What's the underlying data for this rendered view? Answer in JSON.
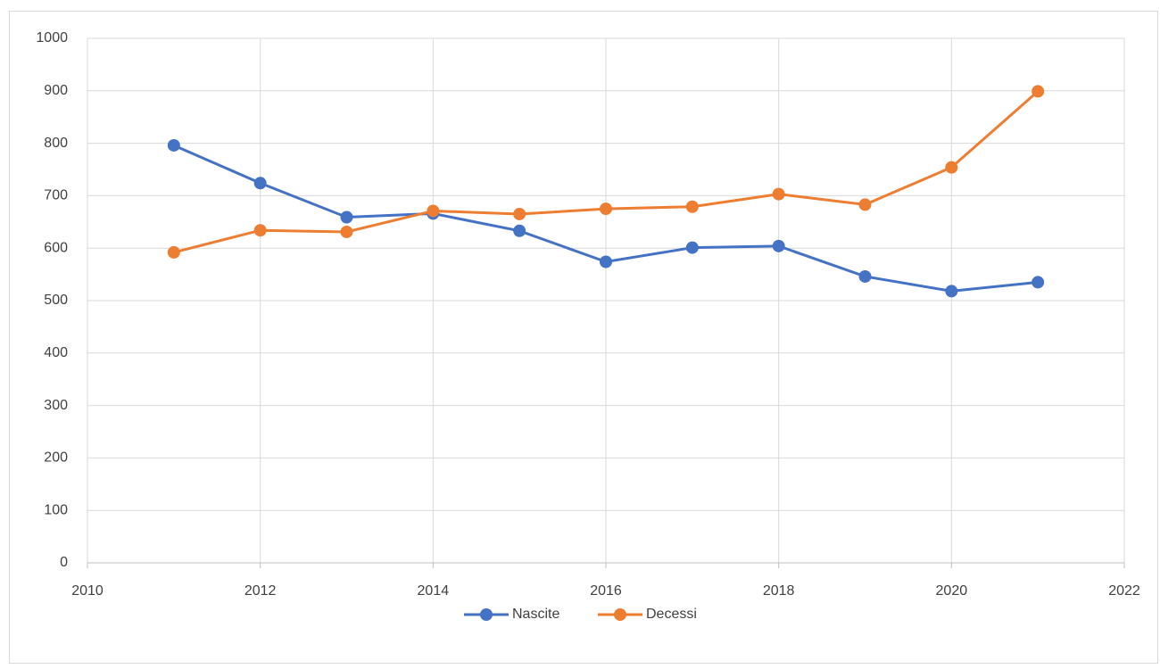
{
  "chart_data": {
    "type": "line",
    "x": [
      2011,
      2012,
      2013,
      2014,
      2015,
      2016,
      2017,
      2018,
      2019,
      2020,
      2021
    ],
    "series": [
      {
        "name": "Nascite",
        "color": "#4472c4",
        "values": [
          796,
          724,
          659,
          666,
          633,
          574,
          601,
          604,
          546,
          518,
          535
        ]
      },
      {
        "name": "Decessi",
        "color": "#ed7d31",
        "values": [
          592,
          634,
          631,
          671,
          665,
          675,
          679,
          703,
          683,
          754,
          899
        ]
      }
    ],
    "xlim": [
      2010,
      2022
    ],
    "xticks": [
      2010,
      2012,
      2014,
      2016,
      2018,
      2020,
      2022
    ],
    "ylim": [
      0,
      1000
    ],
    "yticks": [
      0,
      100,
      200,
      300,
      400,
      500,
      600,
      700,
      800,
      900,
      1000
    ],
    "grid": true,
    "legend": "bottom"
  }
}
